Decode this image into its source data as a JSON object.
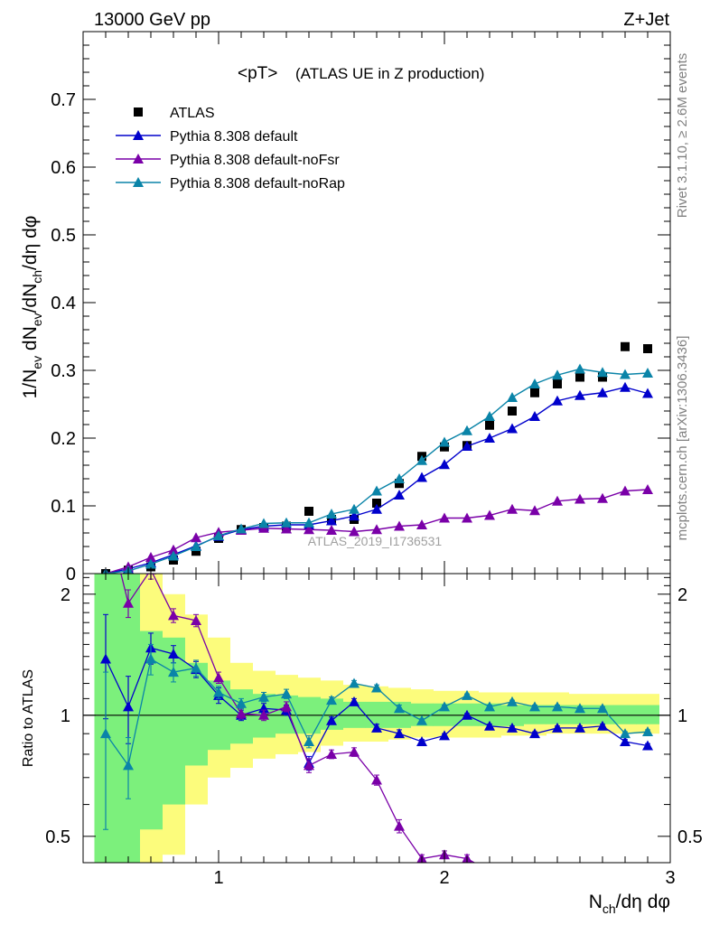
{
  "header": {
    "left": "13000 GeV pp",
    "right": "Z+Jet"
  },
  "side": {
    "rivet": "Rivet 3.1.10, ≥ 2.6M events",
    "mcplots": "mcplots.cern.ch [arXiv:1306.3436]"
  },
  "watermark": "ATLAS_2019_I1736531",
  "colors": {
    "data": "#000000",
    "default": "#0000cc",
    "noFsr": "#7a00a8",
    "noRap": "#0a84a8",
    "band_inner": "#7cf07c",
    "band_outer": "#fcfc7c"
  },
  "chart_data": [
    {
      "type": "scatter",
      "title": "<pT> (ATLAS UE in Z production)",
      "title_main": "<pT>",
      "title_sub": "(ATLAS UE in Z production)",
      "ylabel": "1/Nev dNev/dNch/dη dφ",
      "xlim": [
        0.4,
        3.0
      ],
      "ylim": [
        0,
        0.8
      ],
      "yticks": [
        0,
        0.1,
        0.2,
        0.3,
        0.4,
        0.5,
        0.6,
        0.7
      ],
      "ytick_labels": [
        "0",
        "0.1",
        "0.2",
        "0.3",
        "0.4",
        "0.5",
        "0.6",
        "0.7"
      ],
      "legend_position": "top-left",
      "series": [
        {
          "name": "ATLAS",
          "x": [
            0.5,
            0.6,
            0.7,
            0.8,
            0.9,
            1.0,
            1.1,
            1.2,
            1.3,
            1.4,
            1.5,
            1.6,
            1.7,
            1.8,
            1.9,
            2.0,
            2.1,
            2.2,
            2.3,
            2.4,
            2.5,
            2.6,
            2.7,
            2.8,
            2.9
          ],
          "y": [
            0.0,
            0.005,
            0.01,
            0.02,
            0.033,
            0.052,
            0.065,
            0.068,
            0.07,
            0.092,
            0.08,
            0.08,
            0.104,
            0.133,
            0.173,
            0.187,
            0.189,
            0.219,
            0.24,
            0.267,
            0.28,
            0.29,
            0.29,
            0.335,
            0.332
          ]
        },
        {
          "name": "Pythia 8.308 default",
          "x": [
            0.5,
            0.6,
            0.7,
            0.8,
            0.9,
            1.0,
            1.1,
            1.2,
            1.3,
            1.4,
            1.5,
            1.6,
            1.7,
            1.8,
            1.9,
            2.0,
            2.1,
            2.2,
            2.3,
            2.4,
            2.5,
            2.6,
            2.7,
            2.8,
            2.9
          ],
          "y": [
            0.0,
            0.007,
            0.016,
            0.028,
            0.041,
            0.055,
            0.065,
            0.07,
            0.072,
            0.072,
            0.078,
            0.085,
            0.095,
            0.116,
            0.142,
            0.161,
            0.188,
            0.2,
            0.214,
            0.232,
            0.255,
            0.263,
            0.267,
            0.275,
            0.266
          ]
        },
        {
          "name": "Pythia 8.308 default-noFsr",
          "x": [
            0.5,
            0.6,
            0.7,
            0.8,
            0.9,
            1.0,
            1.1,
            1.2,
            1.3,
            1.4,
            1.5,
            1.6,
            1.7,
            1.8,
            1.9,
            2.0,
            2.1,
            2.2,
            2.3,
            2.4,
            2.5,
            2.6,
            2.7,
            2.8,
            2.9
          ],
          "y": [
            0.0,
            0.01,
            0.024,
            0.035,
            0.053,
            0.061,
            0.064,
            0.067,
            0.066,
            0.065,
            0.064,
            0.062,
            0.065,
            0.07,
            0.072,
            0.082,
            0.082,
            0.086,
            0.095,
            0.093,
            0.107,
            0.11,
            0.111,
            0.122,
            0.124
          ]
        },
        {
          "name": "Pythia 8.308 default-noRap",
          "x": [
            0.5,
            0.6,
            0.7,
            0.8,
            0.9,
            1.0,
            1.1,
            1.2,
            1.3,
            1.4,
            1.5,
            1.6,
            1.7,
            1.8,
            1.9,
            2.0,
            2.1,
            2.2,
            2.3,
            2.4,
            2.5,
            2.6,
            2.7,
            2.8,
            2.9
          ],
          "y": [
            0.0,
            0.004,
            0.014,
            0.026,
            0.04,
            0.056,
            0.066,
            0.074,
            0.075,
            0.075,
            0.088,
            0.095,
            0.122,
            0.14,
            0.167,
            0.194,
            0.211,
            0.232,
            0.26,
            0.28,
            0.293,
            0.302,
            0.297,
            0.294,
            0.296
          ]
        }
      ]
    },
    {
      "type": "line",
      "ylabel": "Ratio to ATLAS",
      "xlabel": "Nch/dη dφ",
      "xlim": [
        0.4,
        3.0
      ],
      "ylim": [
        0.43,
        2.25
      ],
      "log_y": true,
      "xticks": [
        1,
        2,
        3
      ],
      "xtick_labels": [
        "1",
        "2",
        "3"
      ],
      "yticks": [
        0.5,
        1,
        2
      ],
      "ytick_labels": [
        "0.5",
        "1",
        "2"
      ],
      "band_edges": [
        0.45,
        0.55,
        0.65,
        0.75,
        0.85,
        0.95,
        1.05,
        1.15,
        1.25,
        1.35,
        1.45,
        1.55,
        1.65,
        1.75,
        1.85,
        1.95,
        2.05,
        2.15,
        2.25,
        2.35,
        2.45,
        2.55,
        2.65,
        2.75,
        2.85,
        2.95
      ],
      "band_inner": [
        [
          0.3,
          3
        ],
        [
          0.3,
          3
        ],
        [
          0.52,
          1.62
        ],
        [
          0.6,
          1.56
        ],
        [
          0.75,
          1.35
        ],
        [
          0.82,
          1.22
        ],
        [
          0.85,
          1.16
        ],
        [
          0.88,
          1.13
        ],
        [
          0.9,
          1.12
        ],
        [
          0.9,
          1.11
        ],
        [
          0.92,
          1.1
        ],
        [
          0.93,
          1.08
        ],
        [
          0.93,
          1.08
        ],
        [
          0.93,
          1.08
        ],
        [
          0.94,
          1.07
        ],
        [
          0.94,
          1.07
        ],
        [
          0.94,
          1.07
        ],
        [
          0.94,
          1.07
        ],
        [
          0.94,
          1.06
        ],
        [
          0.95,
          1.06
        ],
        [
          0.95,
          1.06
        ],
        [
          0.95,
          1.06
        ],
        [
          0.95,
          1.06
        ],
        [
          0.95,
          1.06
        ],
        [
          0.95,
          1.06
        ]
      ],
      "band_outer": [
        [
          0.3,
          3
        ],
        [
          0.3,
          3
        ],
        [
          0.42,
          2.4
        ],
        [
          0.45,
          2.0
        ],
        [
          0.6,
          1.78
        ],
        [
          0.7,
          1.56
        ],
        [
          0.74,
          1.35
        ],
        [
          0.78,
          1.29
        ],
        [
          0.8,
          1.26
        ],
        [
          0.81,
          1.24
        ],
        [
          0.84,
          1.22
        ],
        [
          0.86,
          1.19
        ],
        [
          0.86,
          1.18
        ],
        [
          0.87,
          1.17
        ],
        [
          0.88,
          1.16
        ],
        [
          0.88,
          1.15
        ],
        [
          0.88,
          1.15
        ],
        [
          0.88,
          1.14
        ],
        [
          0.89,
          1.14
        ],
        [
          0.89,
          1.14
        ],
        [
          0.9,
          1.14
        ],
        [
          0.9,
          1.13
        ],
        [
          0.9,
          1.13
        ],
        [
          0.9,
          1.13
        ],
        [
          0.9,
          1.13
        ]
      ],
      "series": [
        {
          "name": "Pythia 8.308 default",
          "x": [
            0.5,
            0.6,
            0.7,
            0.8,
            0.9,
            1.0,
            1.1,
            1.2,
            1.3,
            1.4,
            1.5,
            1.6,
            1.7,
            1.8,
            1.9,
            2.0,
            2.1,
            2.2,
            2.3,
            2.4,
            2.5,
            2.6,
            2.7,
            2.8,
            2.9
          ],
          "y": [
            1.38,
            1.05,
            1.47,
            1.42,
            1.3,
            1.12,
            1.0,
            1.04,
            1.03,
            0.76,
            0.97,
            1.08,
            0.93,
            0.9,
            0.86,
            0.89,
            1.0,
            0.94,
            0.93,
            0.9,
            0.93,
            0.93,
            0.94,
            0.86,
            0.84
          ],
          "err": [
            0.4,
            0.2,
            0.13,
            0.07,
            0.06,
            0.05,
            0.03,
            0.03,
            0.03,
            0.03,
            0.02,
            0.02,
            0.02,
            0.02,
            0.01,
            0.01,
            0.01,
            0.01,
            0.01,
            0.01,
            0.01,
            0.01,
            0.01,
            0.01,
            0.01
          ]
        },
        {
          "name": "Pythia 8.308 default-noFsr",
          "x": [
            0.5,
            0.6,
            0.7,
            0.8,
            0.9,
            1.0,
            1.1,
            1.2,
            1.3,
            1.4,
            1.5,
            1.6,
            1.7,
            1.8,
            1.9,
            2.0,
            2.1,
            2.2,
            2.3,
            2.4,
            2.5,
            2.6,
            2.7,
            2.8,
            2.9
          ],
          "y": [
            3.2,
            1.9,
            2.3,
            1.77,
            1.72,
            1.24,
            1.01,
            1.0,
            1.05,
            0.75,
            0.8,
            0.81,
            0.69,
            0.53,
            0.44,
            0.45,
            0.44,
            0.41,
            0.41,
            0.41,
            0.41,
            0.41,
            0.41,
            0.41,
            0.41
          ],
          "err": [
            0.5,
            0.15,
            0.12,
            0.07,
            0.06,
            0.04,
            0.03,
            0.03,
            0.03,
            0.03,
            0.02,
            0.02,
            0.02,
            0.02,
            0.01,
            0.01,
            0.01,
            0.01,
            0.01,
            0.01,
            0.01,
            0.01,
            0.01,
            0.01,
            0.01
          ]
        },
        {
          "name": "Pythia 8.308 default-noRap",
          "x": [
            0.5,
            0.6,
            0.7,
            0.8,
            0.9,
            1.0,
            1.1,
            1.2,
            1.3,
            1.4,
            1.5,
            1.6,
            1.7,
            1.8,
            1.9,
            2.0,
            2.1,
            2.2,
            2.3,
            2.4,
            2.5,
            2.6,
            2.7,
            2.8,
            2.9
          ],
          "y": [
            0.9,
            0.75,
            1.38,
            1.28,
            1.31,
            1.14,
            1.07,
            1.11,
            1.13,
            0.86,
            1.09,
            1.2,
            1.17,
            1.04,
            0.97,
            1.05,
            1.12,
            1.05,
            1.08,
            1.05,
            1.05,
            1.04,
            1.04,
            0.9,
            0.91
          ],
          "err": [
            0.38,
            0.13,
            0.12,
            0.07,
            0.06,
            0.04,
            0.03,
            0.03,
            0.03,
            0.03,
            0.02,
            0.02,
            0.02,
            0.02,
            0.01,
            0.01,
            0.01,
            0.01,
            0.01,
            0.01,
            0.01,
            0.01,
            0.01,
            0.01,
            0.01
          ]
        }
      ]
    }
  ]
}
